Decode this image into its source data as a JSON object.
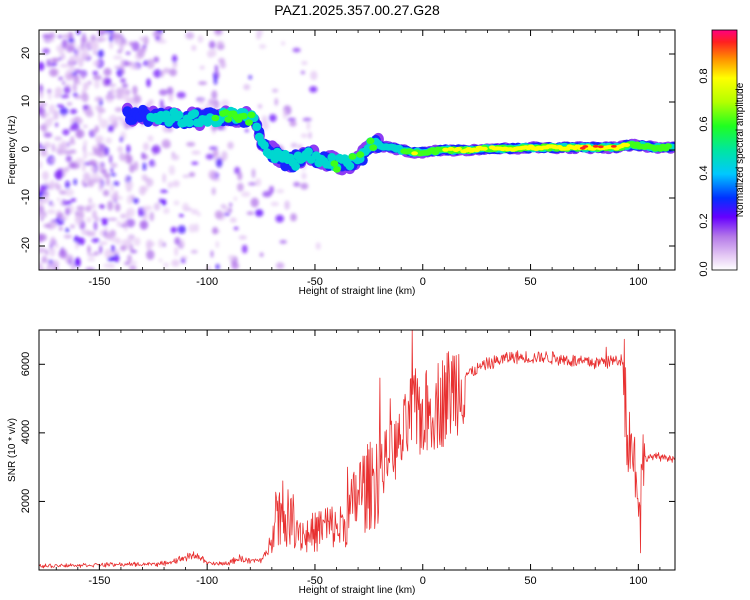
{
  "page": {
    "title": "PAZ1.2025.357.00.27.G28"
  },
  "chart_data": [
    {
      "type": "heatmap",
      "title": "PAZ1.2025.357.00.27.G28",
      "xlabel": "Height of straight line (km)",
      "ylabel": "Frequency (Hz)",
      "xlim": [
        -178,
        117
      ],
      "ylim": [
        -25,
        25
      ],
      "xticks": [
        -150,
        -100,
        -50,
        0,
        50,
        100
      ],
      "xtick_labels": [
        "-150",
        "-100",
        "-50",
        "0",
        "50",
        "100"
      ],
      "yticks": [
        -20,
        -10,
        0,
        10,
        20
      ],
      "ytick_labels": [
        "-20",
        "-10",
        "0",
        "10",
        "20"
      ],
      "colorbar": {
        "label": "Normalized spectral amplitude",
        "range": [
          0,
          1
        ],
        "ticks": [
          0.0,
          0.2,
          0.4,
          0.6,
          0.8
        ],
        "tick_labels": [
          "0.0",
          "0.2",
          "0.4",
          "0.6",
          "0.8"
        ]
      },
      "ridge": {
        "name": "dominant frequency",
        "height_km": [
          -137,
          -128,
          -118,
          -108,
          -100,
          -92,
          -85,
          -78,
          -75,
          -72,
          -68,
          -65,
          -60,
          -55,
          -50,
          -45,
          -40,
          -35,
          -30,
          -25,
          -20,
          -15,
          -10,
          -5,
          0,
          10,
          20,
          30,
          40,
          50,
          60,
          70,
          80,
          90,
          95,
          100,
          108,
          117
        ],
        "frequency_hz": [
          7.5,
          7.2,
          6.8,
          6.5,
          6.5,
          7,
          7,
          6.5,
          2,
          0.5,
          -1,
          -2,
          -2.5,
          -1,
          -1.5,
          -2,
          -3,
          -2.5,
          -2.5,
          1,
          1,
          0.5,
          0,
          -0.5,
          -0.5,
          0,
          0,
          0.3,
          0.3,
          0.5,
          0.5,
          0.5,
          0.5,
          0.5,
          1,
          1,
          0.5,
          0.5
        ],
        "amplitude": [
          0.35,
          0.4,
          0.55,
          0.6,
          0.5,
          0.7,
          0.75,
          0.55,
          0.5,
          0.5,
          0.5,
          0.5,
          0.55,
          0.5,
          0.45,
          0.5,
          0.6,
          0.55,
          0.6,
          0.6,
          0.6,
          0.55,
          0.6,
          0.75,
          0.75,
          0.8,
          0.85,
          0.8,
          0.85,
          0.85,
          0.9,
          0.9,
          0.95,
          0.9,
          0.8,
          0.7,
          0.8,
          0.6
        ]
      }
    },
    {
      "type": "line",
      "xlabel": "Height of straight line (km)",
      "ylabel": "SNR (10 * v/v)",
      "xlim": [
        -178,
        117
      ],
      "ylim": [
        0,
        7000
      ],
      "xticks": [
        -150,
        -100,
        -50,
        0,
        50,
        100
      ],
      "xtick_labels": [
        "-150",
        "-100",
        "-50",
        "0",
        "50",
        "100"
      ],
      "yticks": [
        2000,
        4000,
        6000
      ],
      "ytick_labels": [
        "2000",
        "4000",
        "6000"
      ],
      "color": "#e83030",
      "series": [
        {
          "name": "SNR",
          "x": [
            -178,
            -150,
            -120,
            -105,
            -100,
            -95,
            -90,
            -85,
            -80,
            -75,
            -72,
            -68,
            -65,
            -60,
            -55,
            -50,
            -45,
            -40,
            -35,
            -30,
            -25,
            -20,
            -15,
            -10,
            -5,
            0,
            10,
            20,
            30,
            40,
            50,
            60,
            70,
            80,
            90,
            93,
            95,
            98,
            100,
            102,
            105,
            110,
            117
          ],
          "y": [
            120,
            150,
            180,
            450,
            200,
            170,
            200,
            350,
            250,
            300,
            500,
            1800,
            1500,
            1500,
            1000,
            1100,
            1300,
            1200,
            1400,
            2300,
            2400,
            2900,
            3400,
            3700,
            4600,
            4500,
            5000,
            5700,
            6000,
            6200,
            6200,
            6200,
            6100,
            6050,
            6100,
            6200,
            4000,
            3400,
            2000,
            3200,
            3300,
            3300,
            3250
          ]
        }
      ],
      "peaks": {
        "x": [
          -65,
          -35,
          -20,
          -15,
          -5,
          30,
          85,
          101
        ],
        "y": [
          2600,
          3000,
          5600,
          5000,
          7000,
          6100,
          6500,
          500
        ]
      }
    }
  ]
}
